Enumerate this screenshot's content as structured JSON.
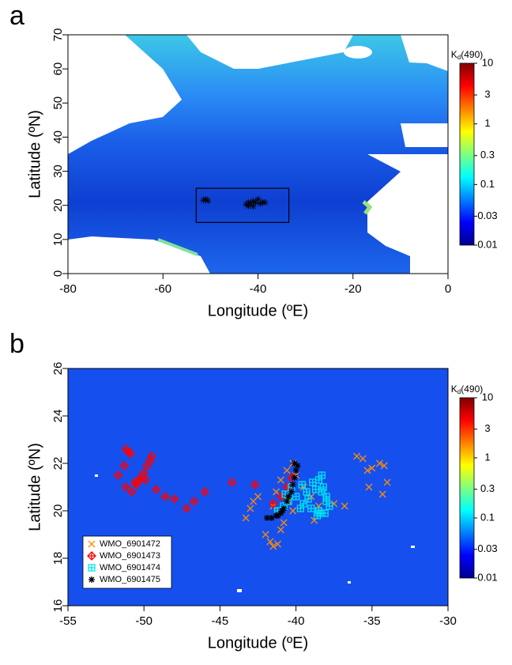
{
  "chart_data": [
    {
      "type": "map",
      "panel_label": "a",
      "xlabel": "Longitude (ºE)",
      "ylabel": "Latitude (ºN)",
      "xlim": [
        -80,
        0
      ],
      "xticks": [
        -80,
        -60,
        -40,
        -20,
        0
      ],
      "ylim": [
        0,
        70
      ],
      "yticks": [
        0,
        10,
        20,
        30,
        40,
        50,
        60,
        70
      ],
      "box": {
        "x": [
          -53,
          -33.5
        ],
        "y": [
          15,
          25
        ],
        "color": "#000000"
      },
      "points": {
        "color": "#000000",
        "x": [
          -51.5,
          -51,
          -50.5,
          -42.5,
          -42,
          -41.5,
          -41,
          -40.5,
          -40,
          -39.5,
          -39,
          -38.5,
          -42,
          -41
        ],
        "y": [
          21.5,
          21.8,
          21.3,
          20.3,
          19.8,
          20.6,
          21.3,
          20.8,
          21.8,
          20.5,
          21,
          20.8,
          20.9,
          19.7
        ]
      },
      "colorbar": {
        "title": "K",
        "title_sub": "d",
        "title_suffix": "(490)",
        "log": true,
        "lim": [
          0.01,
          10
        ],
        "ticks": [
          0.01,
          0.03,
          0.1,
          0.3,
          1,
          3,
          10
        ],
        "colors": [
          "#00008f",
          "#0000ff",
          "#007fff",
          "#00ffff",
          "#7fff7f",
          "#ffff00",
          "#ff7f00",
          "#ff0000",
          "#7f0000"
        ]
      }
    },
    {
      "type": "scatter",
      "panel_label": "b",
      "xlabel": "Longitude (ºE)",
      "ylabel": "Latitude (ºN)",
      "xlim": [
        -55,
        -30
      ],
      "xticks": [
        -55,
        -50,
        -45,
        -40,
        -35,
        -30
      ],
      "ylim": [
        16,
        26
      ],
      "yticks": [
        16,
        18,
        20,
        22,
        24,
        26
      ],
      "legend": "bottom-left",
      "series": [
        {
          "name": "WMO_6901472",
          "color": "#ff8c00",
          "marker": "x",
          "x": [
            -43.3,
            -43.0,
            -42.8,
            -42.5,
            -42.0,
            -41.7,
            -41.5,
            -41.2,
            -41.0,
            -40.8,
            -41.5,
            -41.3,
            -41.0,
            -40.6,
            -40.2,
            -40.0,
            -39.5,
            -39.0,
            -38.8,
            -38.5,
            -37.5,
            -36.8,
            -36.0,
            -35.6,
            -35.3,
            -35.0,
            -34.5,
            -34.2,
            -34.0,
            -34.3,
            -35.2,
            -40.5,
            -40.2
          ],
          "y": [
            19.7,
            20.1,
            20.4,
            20.6,
            19.0,
            18.7,
            18.5,
            18.6,
            19.2,
            19.5,
            20.2,
            20.8,
            21.3,
            21.7,
            22.0,
            21.5,
            21.0,
            20.6,
            19.6,
            20.2,
            20.3,
            20.2,
            22.3,
            22.2,
            21.7,
            21.8,
            22.0,
            21.9,
            21.2,
            20.7,
            21.0,
            20.4,
            20.0
          ]
        },
        {
          "name": "WMO_6901473",
          "color": "#ff0000",
          "marker": "diamond",
          "x": [
            -51.2,
            -51.0,
            -50.9,
            -51.3,
            -51.7,
            -51.2,
            -50.8,
            -50.5,
            -50.3,
            -50.0,
            -49.8,
            -49.6,
            -49.5,
            -50.6,
            -50.2,
            -49.9,
            -49.2,
            -48.6,
            -48.0,
            -47.2,
            -46.7,
            -46.0,
            -44.2,
            -42.7,
            -41.5,
            -41.0,
            -40.6,
            -40.3
          ],
          "y": [
            22.6,
            22.5,
            22.4,
            21.9,
            21.5,
            21.0,
            20.8,
            21.1,
            21.3,
            21.6,
            21.9,
            22.1,
            22.3,
            21.2,
            21.4,
            21.3,
            20.9,
            20.6,
            20.5,
            20.1,
            20.4,
            20.8,
            21.2,
            21.1,
            20.3,
            20.6,
            21.0,
            21.4
          ]
        },
        {
          "name": "WMO_6901474",
          "color": "#00e5ee",
          "marker": "square",
          "x": [
            -41.2,
            -40.8,
            -40.5,
            -40.0,
            -39.7,
            -39.5,
            -39.2,
            -39.0,
            -38.7,
            -38.5,
            -38.3,
            -38.2,
            -38.0,
            -37.8,
            -38.4,
            -38.6,
            -39.3,
            -39.6,
            -40.3,
            -40.7,
            -38.1,
            -38.5,
            -38.9,
            -38.0,
            -38.3
          ],
          "y": [
            20.0,
            20.2,
            20.4,
            20.6,
            20.1,
            20.3,
            20.5,
            20.1,
            20.9,
            21.3,
            21.5,
            21.0,
            20.6,
            20.2,
            19.9,
            19.8,
            20.8,
            21.1,
            21.0,
            20.7,
            19.9,
            20.0,
            21.2,
            20.4,
            20.8
          ]
        },
        {
          "name": "WMO_6901475",
          "color": "#000000",
          "marker": "asterisk",
          "x": [
            -41.9,
            -41.6,
            -41.3,
            -41.0,
            -40.8,
            -40.6,
            -40.5,
            -40.3,
            -40.2,
            -40.1,
            -40.0,
            -40.1,
            -39.9,
            -41.2,
            -40.9
          ],
          "y": [
            19.7,
            19.7,
            19.8,
            19.9,
            20.1,
            20.4,
            20.6,
            20.8,
            21.1,
            21.4,
            21.7,
            22.0,
            21.9,
            19.8,
            20.0
          ]
        }
      ],
      "colorbar": {
        "title": "K",
        "title_sub": "d",
        "title_suffix": "(490)",
        "log": true,
        "lim": [
          0.01,
          10
        ],
        "ticks": [
          0.01,
          0.03,
          0.1,
          0.3,
          1,
          3,
          10
        ],
        "colors": [
          "#00008f",
          "#0000ff",
          "#007fff",
          "#00ffff",
          "#7fff7f",
          "#ffff00",
          "#ff7f00",
          "#ff0000",
          "#7f0000"
        ]
      }
    }
  ]
}
